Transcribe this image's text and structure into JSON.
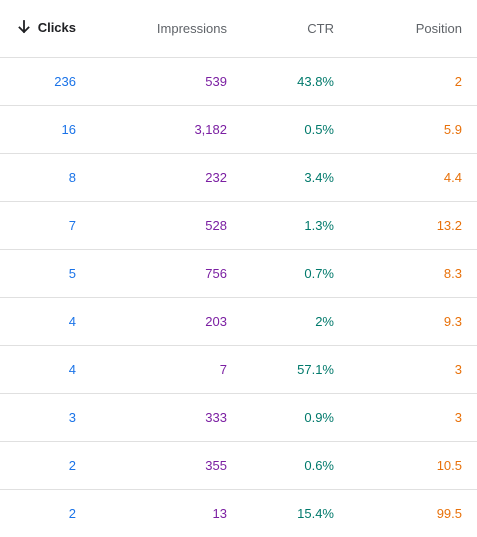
{
  "colors": {
    "clicks": "#1a73e8",
    "impressions": "#7b1fa2",
    "ctr": "#00796b",
    "position": "#e8710a",
    "header_text": "#5f6368",
    "divider": "#e0e0e0"
  },
  "table": {
    "sort": {
      "column": "Clicks",
      "direction": "descending",
      "icon": "arrow-down-icon"
    },
    "headers": {
      "clicks": "Clicks",
      "impressions": "Impressions",
      "ctr": "CTR",
      "position": "Position"
    },
    "rows": [
      {
        "clicks": "236",
        "impressions": "539",
        "ctr": "43.8%",
        "position": "2"
      },
      {
        "clicks": "16",
        "impressions": "3,182",
        "ctr": "0.5%",
        "position": "5.9"
      },
      {
        "clicks": "8",
        "impressions": "232",
        "ctr": "3.4%",
        "position": "4.4"
      },
      {
        "clicks": "7",
        "impressions": "528",
        "ctr": "1.3%",
        "position": "13.2"
      },
      {
        "clicks": "5",
        "impressions": "756",
        "ctr": "0.7%",
        "position": "8.3"
      },
      {
        "clicks": "4",
        "impressions": "203",
        "ctr": "2%",
        "position": "9.3"
      },
      {
        "clicks": "4",
        "impressions": "7",
        "ctr": "57.1%",
        "position": "3"
      },
      {
        "clicks": "3",
        "impressions": "333",
        "ctr": "0.9%",
        "position": "3"
      },
      {
        "clicks": "2",
        "impressions": "355",
        "ctr": "0.6%",
        "position": "10.5"
      },
      {
        "clicks": "2",
        "impressions": "13",
        "ctr": "15.4%",
        "position": "99.5"
      }
    ]
  }
}
